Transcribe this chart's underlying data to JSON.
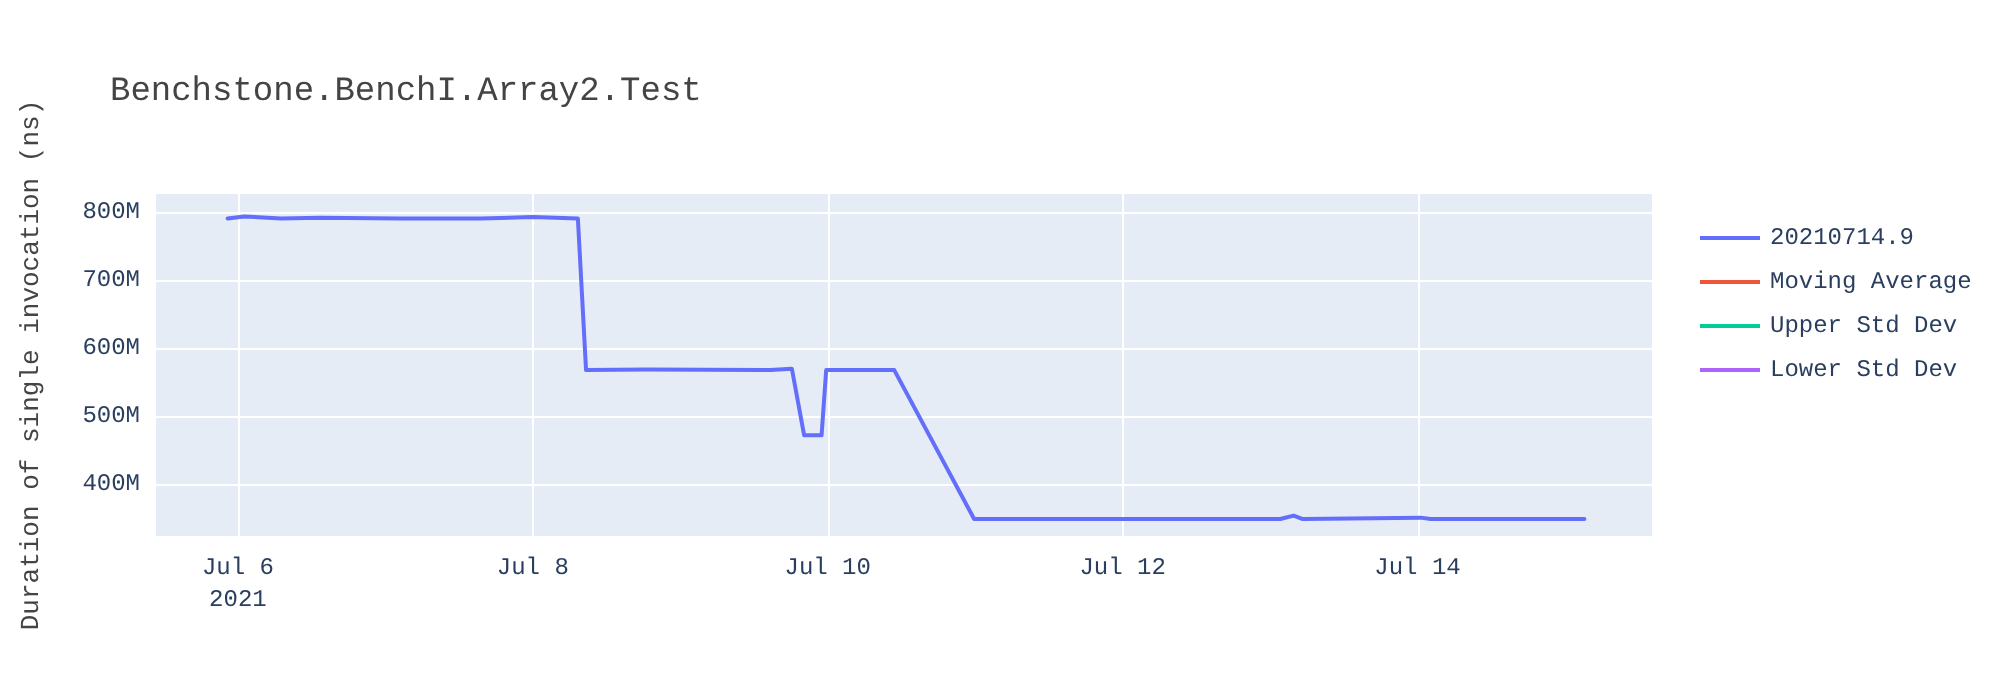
{
  "chart_data": {
    "type": "line",
    "title": "Benchstone.BenchI.Array2.Test",
    "ylabel": "Duration of single invocation (ns)",
    "x": [
      "2021-07-05T22:20",
      "2021-07-06T01:00",
      "2021-07-06T07:00",
      "2021-07-06T13:20",
      "2021-07-07T02:20",
      "2021-07-07T15:30",
      "2021-07-08T00:00",
      "2021-07-08T07:20",
      "2021-07-08T08:40",
      "2021-07-08T18:30",
      "2021-07-09T14:40",
      "2021-07-09T18:10",
      "2021-07-09T20:10",
      "2021-07-09T23:00",
      "2021-07-09T23:45",
      "2021-07-10T10:50",
      "2021-07-10T23:50",
      "2021-07-13T01:40",
      "2021-07-13T03:50",
      "2021-07-13T05:20",
      "2021-07-14T00:30",
      "2021-07-14T02:10",
      "2021-07-15T03:10"
    ],
    "series": [
      {
        "name": "20210714.9",
        "color": "#636efa",
        "values": [
          790,
          793,
          790,
          791,
          790,
          790,
          792,
          790,
          567,
          568,
          567,
          569,
          471,
          471,
          567,
          567,
          348,
          348,
          353,
          348,
          350,
          348,
          348
        ]
      },
      {
        "name": "Moving Average",
        "color": "#ef553b",
        "values": [
          null,
          null,
          null,
          null,
          null,
          null,
          null,
          null,
          null,
          null,
          null,
          null,
          null,
          null,
          null,
          null,
          null,
          null,
          null,
          null,
          null,
          null,
          null
        ]
      },
      {
        "name": "Upper Std Dev",
        "color": "#00cc96",
        "values": [
          null,
          null,
          null,
          null,
          null,
          null,
          null,
          null,
          null,
          null,
          null,
          null,
          null,
          null,
          null,
          null,
          null,
          null,
          null,
          null,
          null,
          null,
          null
        ]
      },
      {
        "name": "Lower Std Dev",
        "color": "#ab63fa",
        "values": [
          null,
          null,
          null,
          null,
          null,
          null,
          null,
          null,
          null,
          null,
          null,
          null,
          null,
          null,
          null,
          null,
          null,
          null,
          null,
          null,
          null,
          null,
          null
        ]
      }
    ],
    "xlim": [
      "2021-07-05T10:40",
      "2021-07-15T14:10"
    ],
    "xticks": [
      {
        "value": "2021-07-06",
        "label": "Jul 6\n2021"
      },
      {
        "value": "2021-07-08",
        "label": "Jul 8"
      },
      {
        "value": "2021-07-10",
        "label": "Jul 10"
      },
      {
        "value": "2021-07-12",
        "label": "Jul 12"
      },
      {
        "value": "2021-07-14",
        "label": "Jul 14"
      }
    ],
    "ylim": [
      323,
      826
    ],
    "yticks": [
      {
        "value": 400,
        "label": "400M"
      },
      {
        "value": 500,
        "label": "500M"
      },
      {
        "value": 600,
        "label": "600M"
      },
      {
        "value": 700,
        "label": "700M"
      },
      {
        "value": 800,
        "label": "800M"
      }
    ],
    "grid": true,
    "legend": "top right",
    "marker": "none",
    "line_style": "solid"
  }
}
